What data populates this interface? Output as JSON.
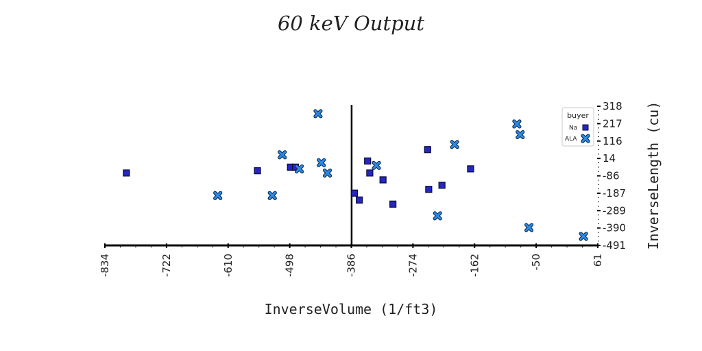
{
  "chart_data": {
    "type": "scatter",
    "title": "60 keV Output",
    "xlabel": "InverseVolume (1/ft3)",
    "ylabel": "InverseLength (cu)",
    "xlim": [
      -834,
      61
    ],
    "ylim": [
      -491,
      318
    ],
    "x_ticks": [
      "-834",
      "-722",
      "-610",
      "-498",
      "-386",
      "-274",
      "-162",
      "-50",
      "61"
    ],
    "y_ticks": [
      "-491",
      "-390",
      "-289",
      "-187",
      "-86",
      "14",
      "116",
      "217",
      "318"
    ],
    "reference_line_x": -386,
    "grid": false,
    "legend": {
      "title": "buyer",
      "position": "top-right"
    },
    "colors": {
      "Na": "#2626c4",
      "ALA": "#2e8ae6"
    },
    "series": [
      {
        "name": "Na",
        "marker": "square",
        "x": [
          -795,
          -557,
          -497,
          -488,
          -381,
          -372,
          -357,
          -353,
          -329,
          -311,
          -248,
          -246,
          -222,
          -170
        ],
        "y": [
          -70,
          -57,
          -36,
          -36,
          -187,
          -227,
          0,
          -70,
          -110,
          -251,
          66,
          -165,
          -141,
          -46
        ]
      },
      {
        "name": "ALA",
        "marker": "x",
        "x": [
          -629,
          -530,
          -512,
          -481,
          -447,
          -441,
          -430,
          -341,
          -230,
          -199,
          -86,
          -80,
          -64,
          35
        ],
        "y": [
          -201,
          -201,
          36,
          -46,
          275,
          -10,
          -70,
          -26,
          -319,
          96,
          215,
          153,
          -387,
          -438
        ]
      }
    ]
  }
}
